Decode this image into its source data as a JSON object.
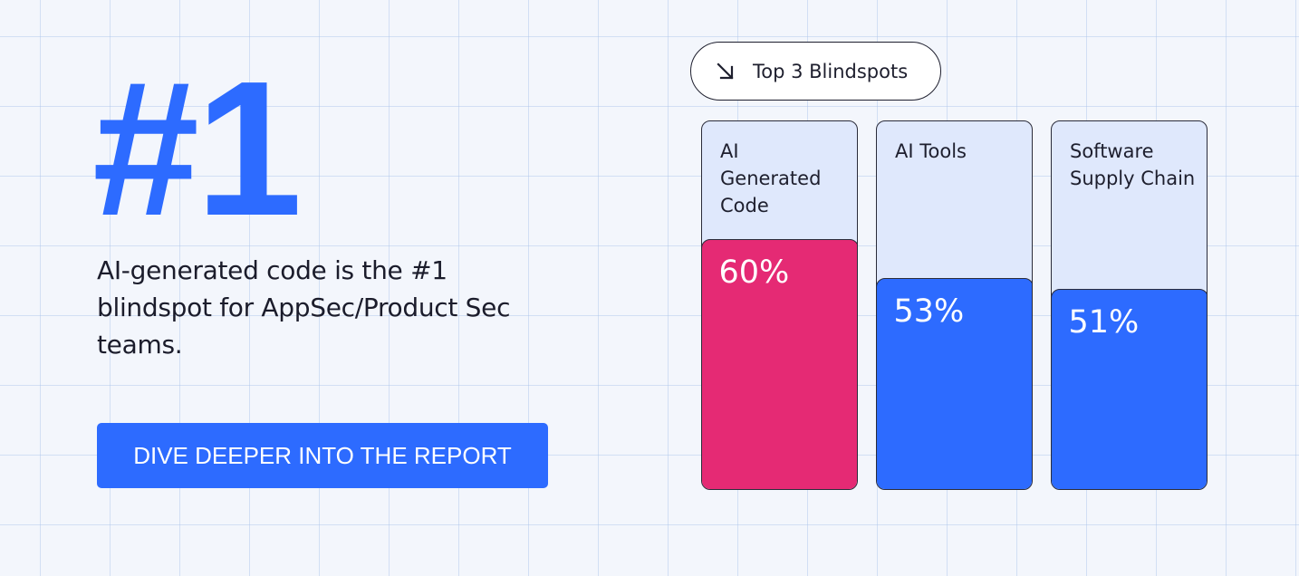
{
  "hero": {
    "big_stat": "#1",
    "headline": "AI-generated code is the #1 blindspot for AppSec/Product Sec teams."
  },
  "cta": {
    "label": "DIVE DEEPER INTO THE REPORT"
  },
  "badge": {
    "icon": "arrow-down-right-icon",
    "label": "Top 3 Blindspots"
  },
  "colors": {
    "accent_blue": "#2d6bff",
    "highlight_pink": "#e52a74",
    "card_background": "#dfe8fc"
  },
  "chart_data": {
    "type": "bar",
    "categories": [
      "AI\nGenerated\nCode",
      "AI Tools",
      "Software\nSupply Chain"
    ],
    "values": [
      60,
      53,
      51
    ],
    "value_labels": [
      "60%",
      "53%",
      "51%"
    ],
    "colors": [
      "#e52a74",
      "#2d6bff",
      "#2d6bff"
    ],
    "ylim": [
      0,
      100
    ],
    "title": "Top 3 Blindspots"
  }
}
